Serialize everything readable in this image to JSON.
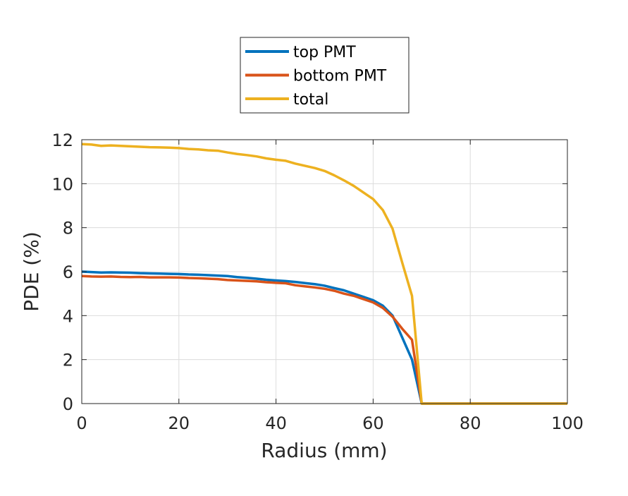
{
  "chart_data": {
    "type": "line",
    "title": "",
    "xlabel": "Radius (mm)",
    "ylabel": "PDE (%)",
    "xlim": [
      0,
      100
    ],
    "ylim": [
      0,
      12
    ],
    "xticks": [
      0,
      20,
      40,
      60,
      80,
      100
    ],
    "yticks": [
      0,
      2,
      4,
      6,
      8,
      10,
      12
    ],
    "xtick_labels": [
      "0",
      "20",
      "40",
      "60",
      "80",
      "100"
    ],
    "ytick_labels": [
      "0",
      "2",
      "4",
      "6",
      "8",
      "10",
      "12"
    ],
    "grid": true,
    "legend_position": "top-center-outside",
    "x": [
      0,
      2,
      4,
      6,
      8,
      10,
      12,
      14,
      16,
      18,
      20,
      22,
      24,
      26,
      28,
      30,
      32,
      34,
      36,
      38,
      40,
      42,
      44,
      46,
      48,
      50,
      52,
      54,
      56,
      58,
      60,
      62,
      64,
      66,
      68,
      70,
      72,
      74,
      76,
      78,
      80,
      82,
      84,
      86,
      88,
      90,
      92,
      94,
      96,
      98,
      100
    ],
    "series": [
      {
        "name": "top PMT",
        "color": "#0072BD",
        "values": [
          6.0,
          5.98,
          5.96,
          5.97,
          5.96,
          5.95,
          5.93,
          5.92,
          5.91,
          5.9,
          5.89,
          5.87,
          5.86,
          5.84,
          5.82,
          5.8,
          5.75,
          5.72,
          5.68,
          5.63,
          5.6,
          5.57,
          5.53,
          5.48,
          5.43,
          5.36,
          5.25,
          5.15,
          5.0,
          4.85,
          4.7,
          4.45,
          4.0,
          3.0,
          2.0,
          0.0,
          0.0,
          0.0,
          0.0,
          0.0,
          0.0,
          0.0,
          0.0,
          0.0,
          0.0,
          0.0,
          0.0,
          0.0,
          0.0,
          0.0,
          0.0
        ]
      },
      {
        "name": "bottom PMT",
        "color": "#D95319",
        "values": [
          5.8,
          5.78,
          5.77,
          5.78,
          5.76,
          5.75,
          5.76,
          5.74,
          5.74,
          5.74,
          5.73,
          5.71,
          5.7,
          5.68,
          5.66,
          5.62,
          5.6,
          5.58,
          5.56,
          5.52,
          5.49,
          5.47,
          5.38,
          5.33,
          5.28,
          5.22,
          5.13,
          5.0,
          4.9,
          4.75,
          4.6,
          4.35,
          3.95,
          3.4,
          2.9,
          0.0,
          0.0,
          0.0,
          0.0,
          0.0,
          0.0,
          0.0,
          0.0,
          0.0,
          0.0,
          0.0,
          0.0,
          0.0,
          0.0,
          0.0,
          0.0
        ]
      },
      {
        "name": "total",
        "color": "#EDB120",
        "values": [
          11.8,
          11.78,
          11.72,
          11.74,
          11.72,
          11.7,
          11.68,
          11.66,
          11.65,
          11.64,
          11.62,
          11.58,
          11.56,
          11.52,
          11.5,
          11.42,
          11.35,
          11.3,
          11.24,
          11.15,
          11.09,
          11.04,
          10.91,
          10.81,
          10.71,
          10.58,
          10.38,
          10.15,
          9.9,
          9.6,
          9.3,
          8.8,
          7.95,
          6.4,
          4.9,
          0.0,
          0.0,
          0.0,
          0.0,
          0.0,
          0.0,
          0.0,
          0.0,
          0.0,
          0.0,
          0.0,
          0.0,
          0.0,
          0.0,
          0.0,
          0.0
        ]
      }
    ]
  }
}
